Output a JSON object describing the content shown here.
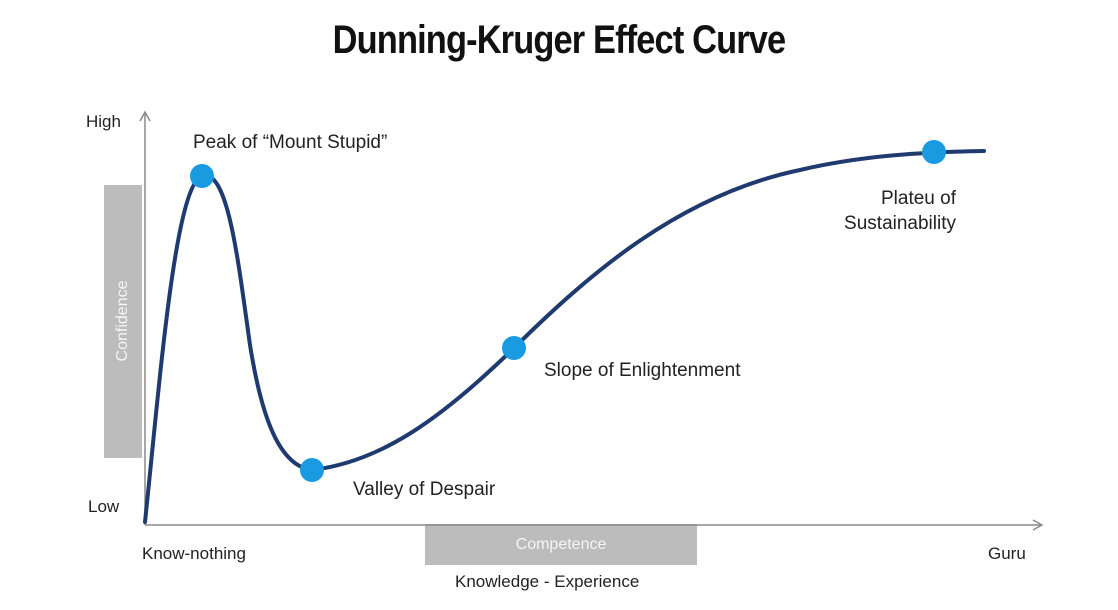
{
  "title": "Dunning-Kruger Effect Curve",
  "y_axis": {
    "high_label": "High",
    "low_label": "Low",
    "band_label": "Confidence"
  },
  "x_axis": {
    "start_label": "Know-nothing",
    "end_label": "Guru",
    "band_label": "Competence",
    "axis_title": "Knowledge - Experience"
  },
  "points": {
    "peak": "Peak of “Mount Stupid”",
    "valley": "Valley of Despair",
    "slope": "Slope of Enlightenment",
    "plateau_line1": "Plateu of",
    "plateau_line2": "Sustainability"
  },
  "colors": {
    "curve": "#1f3a6e",
    "marker": "#1a9ae0",
    "axis": "#8a8a8a",
    "band": "#bcbcbc"
  }
}
